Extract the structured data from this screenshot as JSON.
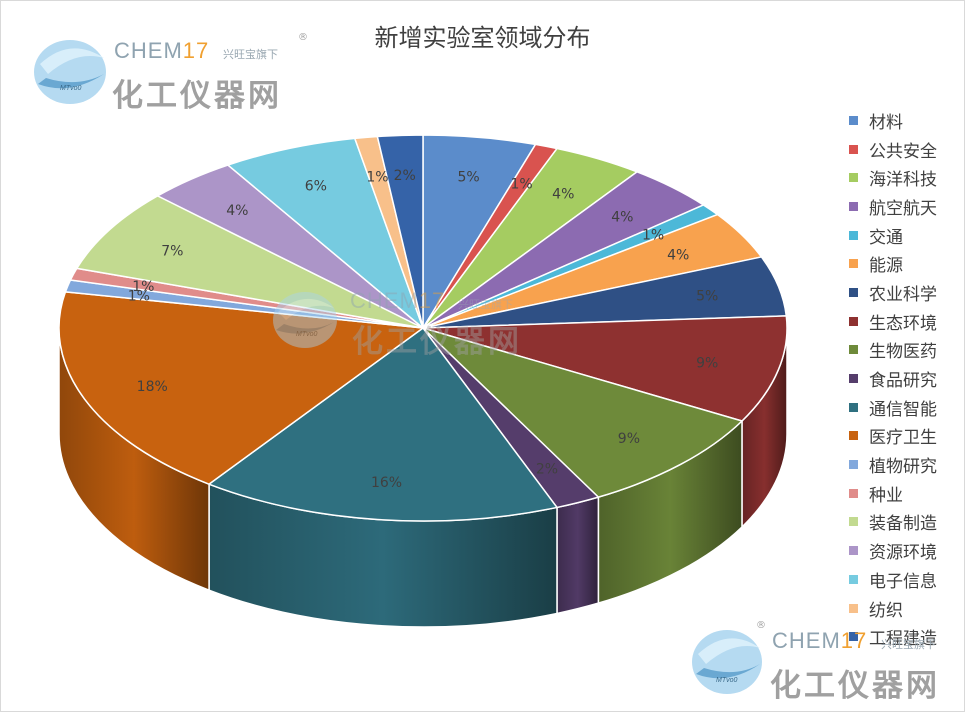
{
  "title": "新增实验室领域分布",
  "chart_data": {
    "type": "pie",
    "style": "3d",
    "title": "新增实验室领域分布",
    "legend_position": "right",
    "slices": [
      {
        "name": "材料",
        "value": 5,
        "label": "5%",
        "color": "#5b8ccb"
      },
      {
        "name": "公共安全",
        "value": 1,
        "label": "1%",
        "color": "#d9534f"
      },
      {
        "name": "海洋科技",
        "value": 4,
        "label": "4%",
        "color": "#a5cc61"
      },
      {
        "name": "航空航天",
        "value": 4,
        "label": "4%",
        "color": "#8c6bb1"
      },
      {
        "name": "交通",
        "value": 1,
        "label": "1%",
        "color": "#4cb8d8"
      },
      {
        "name": "能源",
        "value": 4,
        "label": "4%",
        "color": "#f8a24e"
      },
      {
        "name": "农业科学",
        "value": 5,
        "label": "5%",
        "color": "#2f5085"
      },
      {
        "name": "生态环境",
        "value": 9,
        "label": "9%",
        "color": "#8e3130"
      },
      {
        "name": "生物医药",
        "value": 9,
        "label": "9%",
        "color": "#6e8a3a"
      },
      {
        "name": "食品研究",
        "value": 2,
        "label": "2%",
        "color": "#553d6b"
      },
      {
        "name": "通信智能",
        "value": 16,
        "label": "16%",
        "color": "#2f7080"
      },
      {
        "name": "医疗卫生",
        "value": 18,
        "label": "18%",
        "color": "#c8620f"
      },
      {
        "name": "植物研究",
        "value": 1,
        "label": "1%",
        "color": "#82a8dc"
      },
      {
        "name": "种业",
        "value": 1,
        "label": "1%",
        "color": "#e08c8a"
      },
      {
        "name": "装备制造",
        "value": 7,
        "label": "7%",
        "color": "#c2da90"
      },
      {
        "name": "资源环境",
        "value": 4,
        "label": "4%",
        "color": "#ac95c8"
      },
      {
        "name": "电子信息",
        "value": 6,
        "label": "6%",
        "color": "#76cbe0"
      },
      {
        "name": "纺织",
        "value": 1,
        "label": "1%",
        "color": "#f8c08a"
      },
      {
        "name": "工程建造",
        "value": 2,
        "label": "2%",
        "color": "#3563a8"
      }
    ]
  },
  "watermark": {
    "brand": "CHEM",
    "brand_number": "17",
    "tagline": "兴旺宝旗下",
    "name": "化工仪器网",
    "logo_text": "MTvo0",
    "registered_mark": "®"
  }
}
